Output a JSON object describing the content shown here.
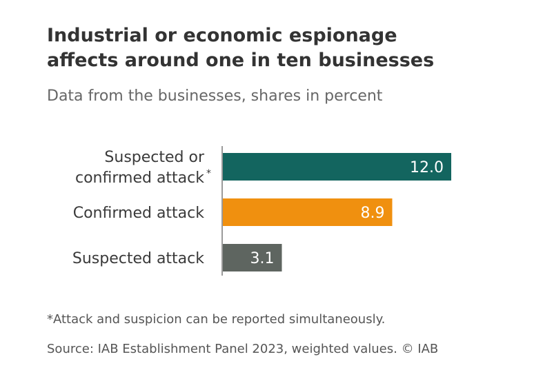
{
  "title_lines": [
    "Industrial or economic espionage",
    "affects around one in ten businesses"
  ],
  "subtitle": "Data from the businesses, shares in percent",
  "footnote": "*Attack and suspicion can be reported simultaneously.",
  "source": "Source: IAB Establishment Panel 2023, weighted values. © IAB",
  "chart_data": {
    "type": "bar",
    "orientation": "horizontal",
    "categories": [
      "Suspected or confirmed attack",
      "Confirmed attack",
      "Suspected attack"
    ],
    "category_lines": [
      [
        "Suspected or",
        "confirmed attack"
      ],
      [
        "Confirmed attack"
      ],
      [
        "Suspected attack"
      ]
    ],
    "category_marks": [
      "*",
      "",
      ""
    ],
    "values": [
      12.0,
      8.9,
      3.1
    ],
    "value_labels": [
      "12.0",
      "8.9",
      "3.1"
    ],
    "colors": [
      "#13655f",
      "#f0900f",
      "#5e6560"
    ],
    "xlim": [
      0,
      12.0
    ],
    "grid": false,
    "legend": "none"
  }
}
